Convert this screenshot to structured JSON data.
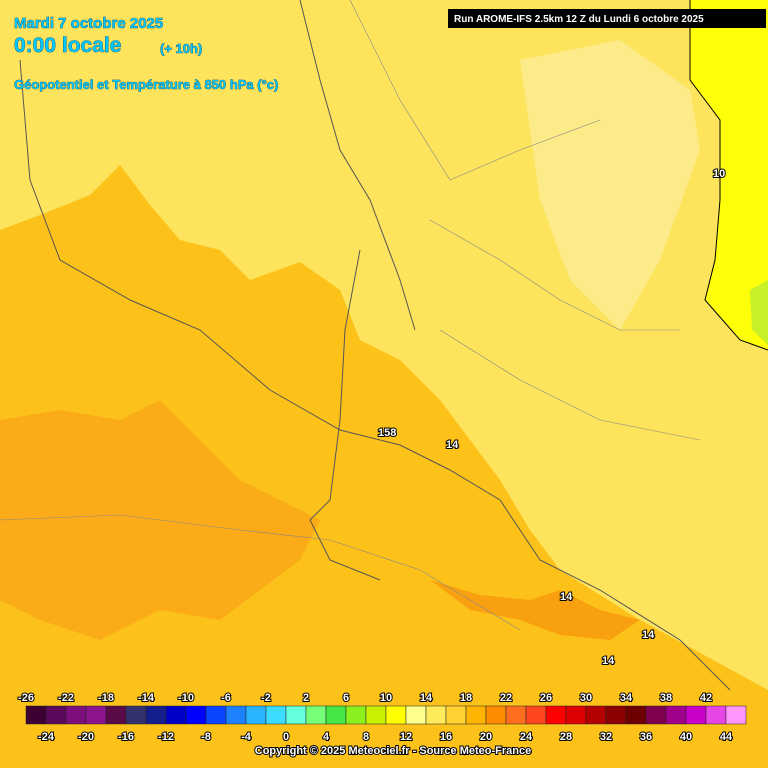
{
  "header": {
    "date": "Mardi 7 octobre 2025",
    "time": "0:00 locale",
    "offset": "(+ 10h)",
    "parameter": "Géopotentiel et Température à 850 hPa (°c)",
    "run": "Run AROME-IFS 2.5km 12 Z du Lundi 6 octobre 2025"
  },
  "map_labels": [
    "10",
    "158",
    "14",
    "14",
    "14",
    "14"
  ],
  "legend": {
    "ticks": [
      -26,
      -24,
      -22,
      -20,
      -18,
      -16,
      -14,
      -12,
      -10,
      -8,
      -6,
      -4,
      -2,
      0,
      2,
      4,
      6,
      8,
      10,
      12,
      14,
      16,
      18,
      20,
      22,
      24,
      26,
      28,
      30,
      32,
      34,
      36,
      38,
      40,
      42,
      44
    ],
    "colors": [
      "#3c0032",
      "#5a0a5a",
      "#7d0f7d",
      "#8c148c",
      "#5a0a46",
      "#32326e",
      "#141e8c",
      "#0000c8",
      "#0000ff",
      "#0a46ff",
      "#1e82ff",
      "#28b4ff",
      "#3cdcff",
      "#64ffdc",
      "#78ff78",
      "#46e646",
      "#8cf01e",
      "#c8f000",
      "#ffff00",
      "#ffff8c",
      "#ffeb5a",
      "#ffd232",
      "#ffb400",
      "#ff8c00",
      "#ff6e1e",
      "#ff461e",
      "#ff0000",
      "#dc0000",
      "#b40000",
      "#8c0000",
      "#6e0000",
      "#820050",
      "#a0008c",
      "#c800c8",
      "#e646e6",
      "#ff96ff"
    ]
  },
  "copyright": "Copyright © 2025 Meteociel.fr - Source Meteo-France"
}
